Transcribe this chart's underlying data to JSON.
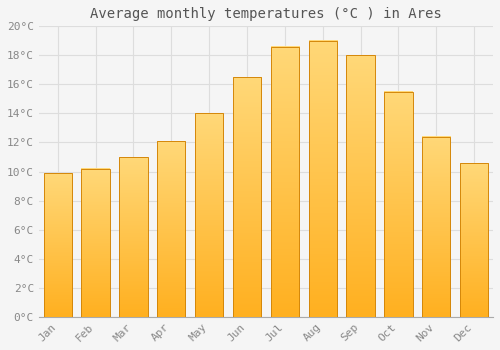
{
  "title": "Average monthly temperatures (°C ) in Ares",
  "months": [
    "Jan",
    "Feb",
    "Mar",
    "Apr",
    "May",
    "Jun",
    "Jul",
    "Aug",
    "Sep",
    "Oct",
    "Nov",
    "Dec"
  ],
  "values": [
    9.9,
    10.2,
    11.0,
    12.1,
    14.0,
    16.5,
    18.6,
    19.0,
    18.0,
    15.5,
    12.4,
    10.6
  ],
  "bar_color_top": "#FFA500",
  "bar_color_bottom": "#FFD060",
  "bar_edge_color": "#D4870A",
  "background_color": "#F5F5F5",
  "grid_color": "#DDDDDD",
  "ylim": [
    0,
    20
  ],
  "yticks": [
    0,
    2,
    4,
    6,
    8,
    10,
    12,
    14,
    16,
    18,
    20
  ],
  "title_fontsize": 10,
  "tick_fontsize": 8,
  "font_family": "monospace",
  "tick_color": "#888888",
  "title_color": "#555555"
}
